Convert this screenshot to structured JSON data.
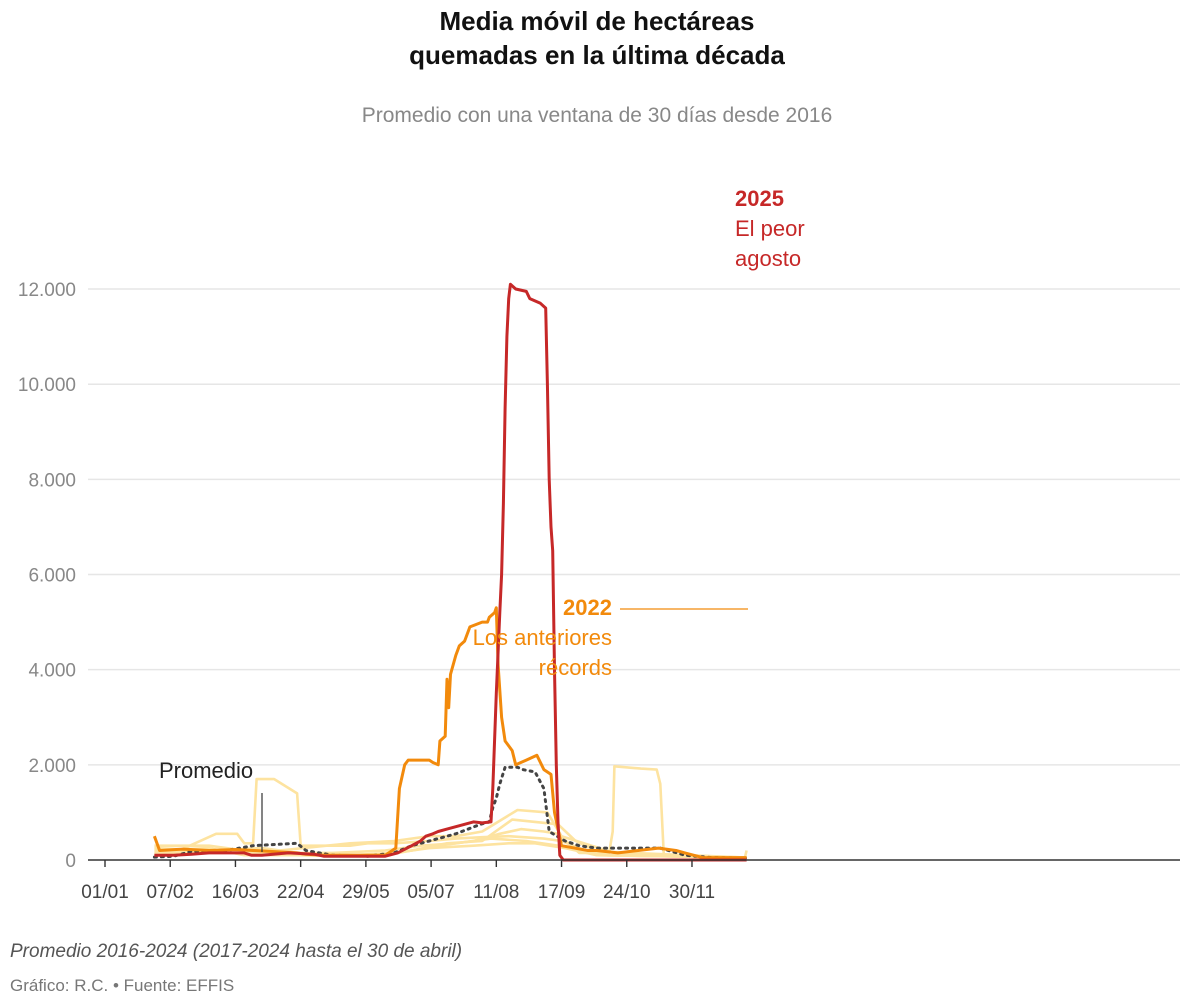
{
  "header": {
    "title_line1": "Media móvil de hectáreas",
    "title_line2": "quemadas en la última década",
    "subtitle": "Promedio con una ventana de 30 días desde 2016"
  },
  "footer": {
    "note": "Promedio 2016-2024 (2017-2024 hasta el 30 de abril)",
    "credit": "Gráfico: R.C. • Fuente: EFFIS"
  },
  "annotations": {
    "y2025_year": "2025",
    "y2025_line1": "El peor",
    "y2025_line2": "agosto",
    "y2022_year": "2022",
    "y2022_line1": "Los anteriores",
    "y2022_line2": "récords",
    "promedio": "Promedio"
  },
  "colors": {
    "y2025": "#c62828",
    "y2022": "#f28a0c",
    "other_years": "#fde3a0",
    "average": "#444444",
    "grid": "#e6e6e6",
    "axis": "#333333"
  },
  "chart_data": {
    "type": "line",
    "x_unit": "day of year",
    "xlim": [
      1,
      365
    ],
    "ylim": [
      0,
      12500
    ],
    "x_ticks": [
      {
        "day": 1,
        "label": "01/01"
      },
      {
        "day": 38,
        "label": "07/02"
      },
      {
        "day": 75,
        "label": "16/03"
      },
      {
        "day": 112,
        "label": "22/04"
      },
      {
        "day": 149,
        "label": "29/05"
      },
      {
        "day": 186,
        "label": "05/07"
      },
      {
        "day": 223,
        "label": "11/08"
      },
      {
        "day": 260,
        "label": "17/09"
      },
      {
        "day": 297,
        "label": "24/10"
      },
      {
        "day": 334,
        "label": "30/11"
      }
    ],
    "y_ticks": [
      {
        "value": 0,
        "label": "0"
      },
      {
        "value": 2000,
        "label": "2.000"
      },
      {
        "value": 4000,
        "label": "4.000"
      },
      {
        "value": 6000,
        "label": "6.000"
      },
      {
        "value": 8000,
        "label": "8.000"
      },
      {
        "value": 10000,
        "label": "10.000"
      },
      {
        "value": 12000,
        "label": "12.000"
      }
    ],
    "series": [
      {
        "id": "other",
        "role": "other",
        "points": [
          [
            29,
            100
          ],
          [
            40,
            150
          ],
          [
            64,
            550
          ],
          [
            76,
            550
          ],
          [
            80,
            350
          ],
          [
            85,
            350
          ],
          [
            87,
            1700
          ],
          [
            97,
            1700
          ],
          [
            110,
            1400
          ],
          [
            112,
            300
          ],
          [
            140,
            300
          ],
          [
            150,
            350
          ],
          [
            165,
            350
          ],
          [
            185,
            400
          ],
          [
            200,
            450
          ],
          [
            215,
            480
          ],
          [
            230,
            500
          ],
          [
            250,
            450
          ],
          [
            260,
            400
          ],
          [
            280,
            100
          ],
          [
            365,
            50
          ]
        ]
      },
      {
        "id": "other",
        "role": "other",
        "points": [
          [
            29,
            200
          ],
          [
            60,
            250
          ],
          [
            80,
            100
          ],
          [
            110,
            100
          ],
          [
            140,
            80
          ],
          [
            160,
            100
          ],
          [
            175,
            200
          ],
          [
            190,
            300
          ],
          [
            210,
            400
          ],
          [
            225,
            550
          ],
          [
            237,
            650
          ],
          [
            250,
            600
          ],
          [
            258,
            550
          ],
          [
            270,
            150
          ],
          [
            287,
            150
          ],
          [
            289,
            600
          ],
          [
            290,
            1970
          ],
          [
            305,
            1920
          ],
          [
            314,
            1900
          ],
          [
            316,
            1600
          ],
          [
            318,
            100
          ],
          [
            340,
            50
          ],
          [
            364,
            50
          ],
          [
            365,
            200
          ]
        ]
      },
      {
        "id": "other",
        "role": "other",
        "points": [
          [
            29,
            300
          ],
          [
            60,
            300
          ],
          [
            80,
            200
          ],
          [
            100,
            200
          ],
          [
            140,
            350
          ],
          [
            165,
            400
          ],
          [
            185,
            500
          ],
          [
            200,
            500
          ],
          [
            215,
            600
          ],
          [
            235,
            1050
          ],
          [
            252,
            1000
          ],
          [
            260,
            500
          ],
          [
            290,
            150
          ],
          [
            365,
            50
          ]
        ]
      },
      {
        "id": "other",
        "role": "other",
        "points": [
          [
            29,
            150
          ],
          [
            60,
            200
          ],
          [
            90,
            250
          ],
          [
            120,
            100
          ],
          [
            150,
            100
          ],
          [
            175,
            200
          ],
          [
            195,
            350
          ],
          [
            215,
            400
          ],
          [
            232,
            850
          ],
          [
            245,
            800
          ],
          [
            258,
            750
          ],
          [
            268,
            400
          ],
          [
            285,
            100
          ],
          [
            365,
            50
          ]
        ]
      },
      {
        "id": "other",
        "role": "other",
        "points": [
          [
            29,
            100
          ],
          [
            60,
            150
          ],
          [
            95,
            150
          ],
          [
            130,
            150
          ],
          [
            160,
            200
          ],
          [
            180,
            300
          ],
          [
            200,
            350
          ],
          [
            220,
            450
          ],
          [
            240,
            400
          ],
          [
            258,
            300
          ],
          [
            272,
            200
          ],
          [
            300,
            150
          ],
          [
            365,
            50
          ]
        ]
      },
      {
        "id": "other",
        "role": "other",
        "points": [
          [
            29,
            250
          ],
          [
            60,
            200
          ],
          [
            100,
            150
          ],
          [
            140,
            100
          ],
          [
            165,
            150
          ],
          [
            185,
            250
          ],
          [
            210,
            300
          ],
          [
            230,
            350
          ],
          [
            245,
            350
          ],
          [
            262,
            250
          ],
          [
            280,
            100
          ],
          [
            365,
            50
          ]
        ]
      },
      {
        "id": "average",
        "role": "average",
        "points": [
          [
            29,
            60
          ],
          [
            40,
            80
          ],
          [
            50,
            180
          ],
          [
            70,
            200
          ],
          [
            85,
            300
          ],
          [
            110,
            350
          ],
          [
            115,
            200
          ],
          [
            130,
            100
          ],
          [
            150,
            80
          ],
          [
            165,
            150
          ],
          [
            175,
            300
          ],
          [
            185,
            400
          ],
          [
            200,
            550
          ],
          [
            214,
            750
          ],
          [
            219,
            800
          ],
          [
            221,
            1100
          ],
          [
            223,
            1300
          ],
          [
            225,
            1600
          ],
          [
            228,
            1950
          ],
          [
            235,
            1950
          ],
          [
            238,
            1900
          ],
          [
            245,
            1850
          ],
          [
            250,
            1500
          ],
          [
            253,
            600
          ],
          [
            262,
            400
          ],
          [
            270,
            300
          ],
          [
            280,
            250
          ],
          [
            290,
            250
          ],
          [
            300,
            250
          ],
          [
            316,
            250
          ],
          [
            330,
            100
          ],
          [
            345,
            50
          ],
          [
            365,
            40
          ]
        ]
      },
      {
        "id": "2022",
        "role": "y2022",
        "points": [
          [
            29,
            500
          ],
          [
            32,
            200
          ],
          [
            45,
            230
          ],
          [
            60,
            200
          ],
          [
            75,
            220
          ],
          [
            85,
            200
          ],
          [
            110,
            150
          ],
          [
            115,
            120
          ],
          [
            125,
            100
          ],
          [
            150,
            100
          ],
          [
            160,
            100
          ],
          [
            166,
            250
          ],
          [
            168,
            1500
          ],
          [
            171,
            2000
          ],
          [
            173,
            2100
          ],
          [
            185,
            2100
          ],
          [
            187,
            2050
          ],
          [
            190,
            2000
          ],
          [
            191,
            2500
          ],
          [
            194,
            2600
          ],
          [
            195,
            3800
          ],
          [
            196,
            3200
          ],
          [
            197,
            3900
          ],
          [
            200,
            4300
          ],
          [
            202,
            4500
          ],
          [
            205,
            4600
          ],
          [
            208,
            4900
          ],
          [
            215,
            5000
          ],
          [
            218,
            5000
          ],
          [
            219,
            5100
          ],
          [
            222,
            5200
          ],
          [
            223,
            5300
          ],
          [
            224,
            4100
          ],
          [
            226,
            3000
          ],
          [
            228,
            2500
          ],
          [
            232,
            2300
          ],
          [
            234,
            2000
          ],
          [
            240,
            2100
          ],
          [
            246,
            2200
          ],
          [
            250,
            1900
          ],
          [
            254,
            1800
          ],
          [
            256,
            1000
          ],
          [
            260,
            300
          ],
          [
            275,
            200
          ],
          [
            280,
            200
          ],
          [
            292,
            150
          ],
          [
            315,
            250
          ],
          [
            325,
            200
          ],
          [
            330,
            150
          ],
          [
            340,
            50
          ],
          [
            365,
            50
          ]
        ]
      },
      {
        "id": "2025",
        "role": "y2025",
        "points": [
          [
            29,
            100
          ],
          [
            40,
            100
          ],
          [
            50,
            120
          ],
          [
            60,
            150
          ],
          [
            80,
            150
          ],
          [
            84,
            100
          ],
          [
            90,
            100
          ],
          [
            105,
            150
          ],
          [
            120,
            120
          ],
          [
            125,
            80
          ],
          [
            150,
            80
          ],
          [
            160,
            80
          ],
          [
            167,
            150
          ],
          [
            175,
            300
          ],
          [
            180,
            400
          ],
          [
            183,
            500
          ],
          [
            187,
            550
          ],
          [
            190,
            600
          ],
          [
            195,
            650
          ],
          [
            200,
            700
          ],
          [
            205,
            750
          ],
          [
            210,
            800
          ],
          [
            215,
            780
          ],
          [
            220,
            800
          ],
          [
            221,
            1500
          ],
          [
            223,
            3500
          ],
          [
            225,
            5200
          ],
          [
            226,
            6000
          ],
          [
            227,
            7500
          ],
          [
            228,
            9500
          ],
          [
            229,
            11000
          ],
          [
            230,
            11800
          ],
          [
            231,
            12100
          ],
          [
            234,
            12000
          ],
          [
            240,
            11950
          ],
          [
            242,
            11800
          ],
          [
            248,
            11700
          ],
          [
            251,
            11600
          ],
          [
            252,
            10000
          ],
          [
            253,
            8000
          ],
          [
            254,
            7000
          ],
          [
            255,
            6500
          ],
          [
            256,
            4000
          ],
          [
            257,
            2000
          ],
          [
            258,
            800
          ],
          [
            259,
            100
          ],
          [
            261,
            0
          ],
          [
            365,
            0
          ]
        ]
      }
    ]
  }
}
